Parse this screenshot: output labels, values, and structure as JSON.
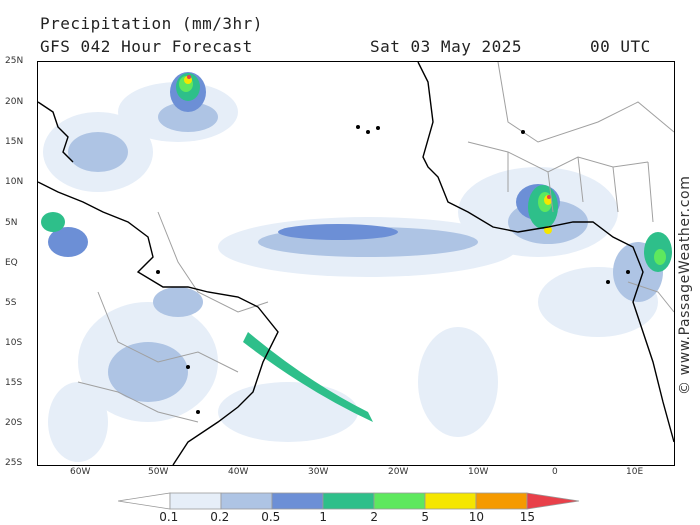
{
  "header": {
    "title": "Precipitation (mm/3hr)",
    "subtitle": "GFS 042 Hour Forecast",
    "date": "Sat 03 May 2025",
    "time": "00 UTC"
  },
  "axes": {
    "lat_labels": [
      "25N",
      "20N",
      "15N",
      "10N",
      "5N",
      "EQ",
      "5S",
      "10S",
      "15S",
      "20S",
      "25S"
    ],
    "lon_labels": [
      "60W",
      "50W",
      "40W",
      "30W",
      "20W",
      "10W",
      "0",
      "10E"
    ]
  },
  "legend": {
    "labels": [
      "0.1",
      "0.2",
      "0.5",
      "1",
      "2",
      "5",
      "10",
      "15"
    ],
    "colors": [
      "#ffffff",
      "#e6eef8",
      "#aec4e4",
      "#6c8fd6",
      "#2ebf8a",
      "#5ee85e",
      "#f5e600",
      "#f59a00",
      "#e8404a"
    ]
  },
  "watermark": "© www.PassageWeather.com",
  "map": {
    "region": "Tropical Atlantic Ocean",
    "extent": {
      "lat": [
        -25,
        25
      ],
      "lon": [
        -65,
        14
      ]
    },
    "land_outline_color": "#000000",
    "border_color": "#a0a0a0",
    "grid": false
  }
}
